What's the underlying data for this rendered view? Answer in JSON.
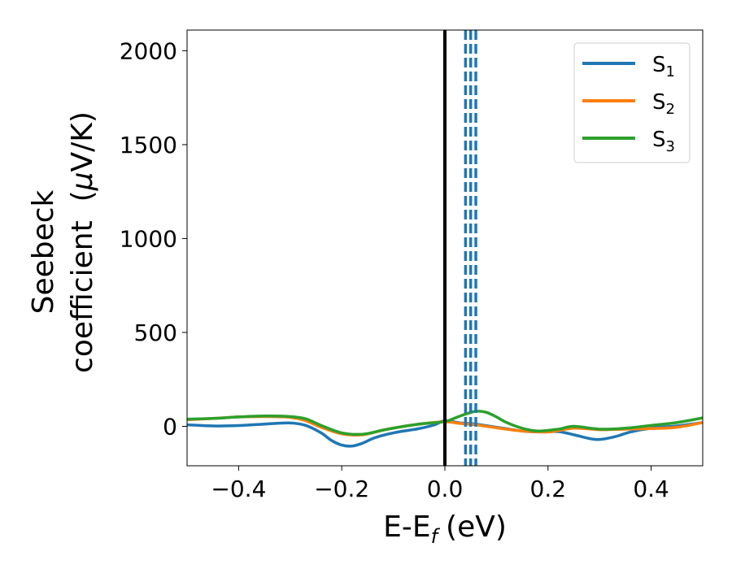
{
  "chart_data": {
    "type": "line",
    "xlabel": "E-E",
    "xlabel_sub": "f",
    "xlabel_unit": "(eV)",
    "ylabel_line1": "Seebeck",
    "ylabel_line2": "coefficient  (",
    "ylabel_mu": "μ",
    "ylabel_unit": "V/K)",
    "xlim": [
      -0.5,
      0.5
    ],
    "ylim": [
      -210,
      2110
    ],
    "xticks": [
      -0.4,
      -0.2,
      0.0,
      0.2,
      0.4
    ],
    "xtick_labels": [
      "−0.4",
      "−0.2",
      "0.0",
      "0.2",
      "0.4"
    ],
    "yticks": [
      0,
      500,
      1000,
      1500,
      2000
    ],
    "ytick_labels": [
      "0",
      "500",
      "1000",
      "1500",
      "2000"
    ],
    "legend_position": "top-right",
    "grid": false,
    "vertical_solid_line": {
      "x": 0.0,
      "color": "#000000"
    },
    "vertical_dashed_lines": {
      "x": [
        0.04,
        0.05,
        0.06
      ],
      "color": "#1f77b4"
    },
    "series": [
      {
        "name": "S",
        "subscript": "1",
        "color": "#1f77b4",
        "x": [
          -0.5,
          -0.45,
          -0.4,
          -0.35,
          -0.3,
          -0.27,
          -0.24,
          -0.22,
          -0.2,
          -0.18,
          -0.16,
          -0.14,
          -0.12,
          -0.1,
          -0.08,
          -0.05,
          -0.02,
          0.0,
          0.03,
          0.06,
          0.1,
          0.15,
          0.18,
          0.22,
          0.25,
          0.28,
          0.3,
          0.33,
          0.36,
          0.4,
          0.45,
          0.5
        ],
        "y": [
          8,
          2,
          4,
          12,
          18,
          5,
          -35,
          -75,
          -100,
          -105,
          -90,
          -65,
          -48,
          -35,
          -25,
          -12,
          8,
          30,
          18,
          12,
          -5,
          -25,
          -30,
          -28,
          -45,
          -65,
          -70,
          -55,
          -30,
          -10,
          2,
          20
        ]
      },
      {
        "name": "S",
        "subscript": "2",
        "color": "#ff7f0e",
        "x": [
          -0.5,
          -0.45,
          -0.4,
          -0.35,
          -0.3,
          -0.27,
          -0.24,
          -0.2,
          -0.16,
          -0.12,
          -0.08,
          -0.04,
          0.0,
          0.03,
          0.06,
          0.1,
          0.15,
          0.2,
          0.25,
          0.3,
          0.35,
          0.4,
          0.45,
          0.5
        ],
        "y": [
          35,
          42,
          50,
          52,
          48,
          30,
          -5,
          -40,
          -45,
          -20,
          0,
          15,
          25,
          15,
          8,
          -8,
          -25,
          -30,
          -10,
          -18,
          -15,
          -12,
          -5,
          20
        ]
      },
      {
        "name": "S",
        "subscript": "3",
        "color": "#2ca02c",
        "x": [
          -0.5,
          -0.45,
          -0.4,
          -0.35,
          -0.3,
          -0.27,
          -0.24,
          -0.2,
          -0.16,
          -0.12,
          -0.08,
          -0.04,
          0.0,
          0.02,
          0.04,
          0.06,
          0.08,
          0.1,
          0.12,
          0.15,
          0.18,
          0.22,
          0.25,
          0.3,
          0.35,
          0.4,
          0.45,
          0.5
        ],
        "y": [
          38,
          42,
          50,
          55,
          52,
          40,
          5,
          -35,
          -42,
          -20,
          0,
          15,
          25,
          45,
          65,
          80,
          75,
          50,
          20,
          -10,
          -25,
          -15,
          0,
          -15,
          -10,
          5,
          20,
          45
        ]
      }
    ]
  }
}
